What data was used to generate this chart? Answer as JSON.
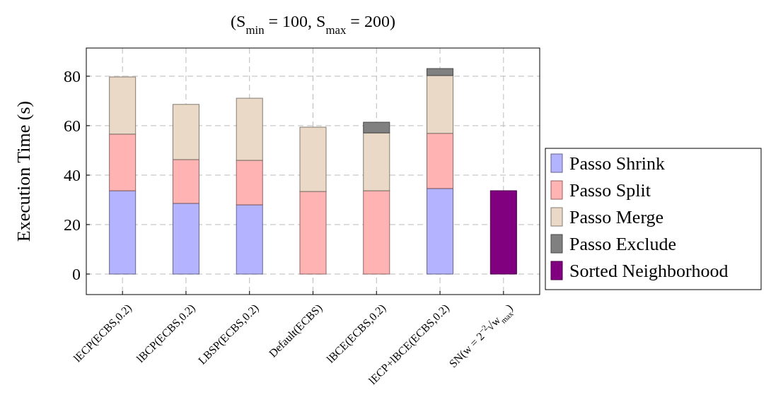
{
  "chart_data": {
    "type": "bar",
    "stacked": true,
    "title": "(S$_{min}$ = 100, S$_{max}$ = 200)",
    "ylabel": "Execution Time (s)",
    "categories": [
      "lECP(ECBS,0.2)",
      "lBCP(ECBS,0.2)",
      "LBSP(ECBS,0.2)",
      "Default(ECBS)",
      "lBCE(ECBS,0.2)",
      "lECP+lBCE(ECBS,0.2)",
      "SN(w = 2$^{−2}$√w$_{max}$)"
    ],
    "series": [
      {
        "name": "Passo Shrink",
        "color": "#b3b3ff",
        "values": [
          33.7,
          28.6,
          28,
          0,
          0,
          34.6,
          null
        ]
      },
      {
        "name": "Passo Split",
        "color": "#ffb3b3",
        "values": [
          22.9,
          17.7,
          18,
          33.4,
          33.7,
          22.3,
          null
        ]
      },
      {
        "name": "Passo Merge",
        "color": "#ead9c6",
        "values": [
          23.1,
          22.3,
          25.1,
          26,
          23.4,
          23.4,
          null
        ]
      },
      {
        "name": "Passo Exclude",
        "color": "#808080",
        "values": [
          0,
          0,
          0,
          0,
          4.3,
          2.8,
          null
        ]
      },
      {
        "name": "Sorted Neighborhood",
        "color": "#800080",
        "values": [
          null,
          null,
          null,
          null,
          null,
          null,
          33.7
        ]
      }
    ],
    "ylim": [
      -8.3,
      91.4
    ],
    "yticks": [
      0,
      20,
      40,
      60,
      80
    ],
    "grid": true,
    "legend": "right"
  }
}
